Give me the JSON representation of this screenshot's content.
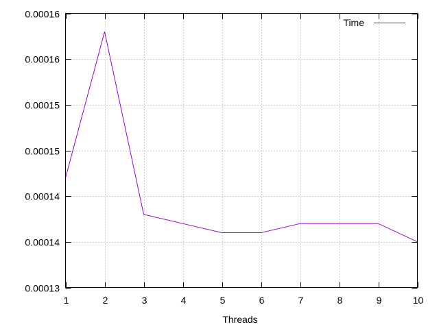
{
  "chart_data": {
    "type": "line",
    "title": "",
    "xlabel": "Threads",
    "ylabel": "",
    "x": [
      1,
      2,
      3,
      4,
      5,
      6,
      7,
      8,
      9,
      10
    ],
    "series": [
      {
        "name": "Time",
        "color": "#9400d3",
        "values": [
          0.000142,
          0.000158,
          0.000138,
          0.000137,
          0.000136,
          0.000136,
          0.000137,
          0.000137,
          0.000137,
          0.000135
        ]
      }
    ],
    "xlim": [
      1,
      10
    ],
    "ylim": [
      0.00013,
      0.00016
    ],
    "x_ticks": [
      "1",
      "2",
      "3",
      "4",
      "5",
      "6",
      "7",
      "8",
      "9",
      "10"
    ],
    "y_ticks": [
      0.00013,
      0.000135,
      0.00014,
      0.000145,
      0.00015,
      0.000155,
      0.00016
    ],
    "y_tick_labels": [
      "0.00013",
      "0.00014",
      "0.00014",
      "0.00015",
      "0.00015",
      "0.00016",
      "0.00016"
    ],
    "grid": true,
    "legend_position": "top-right"
  }
}
